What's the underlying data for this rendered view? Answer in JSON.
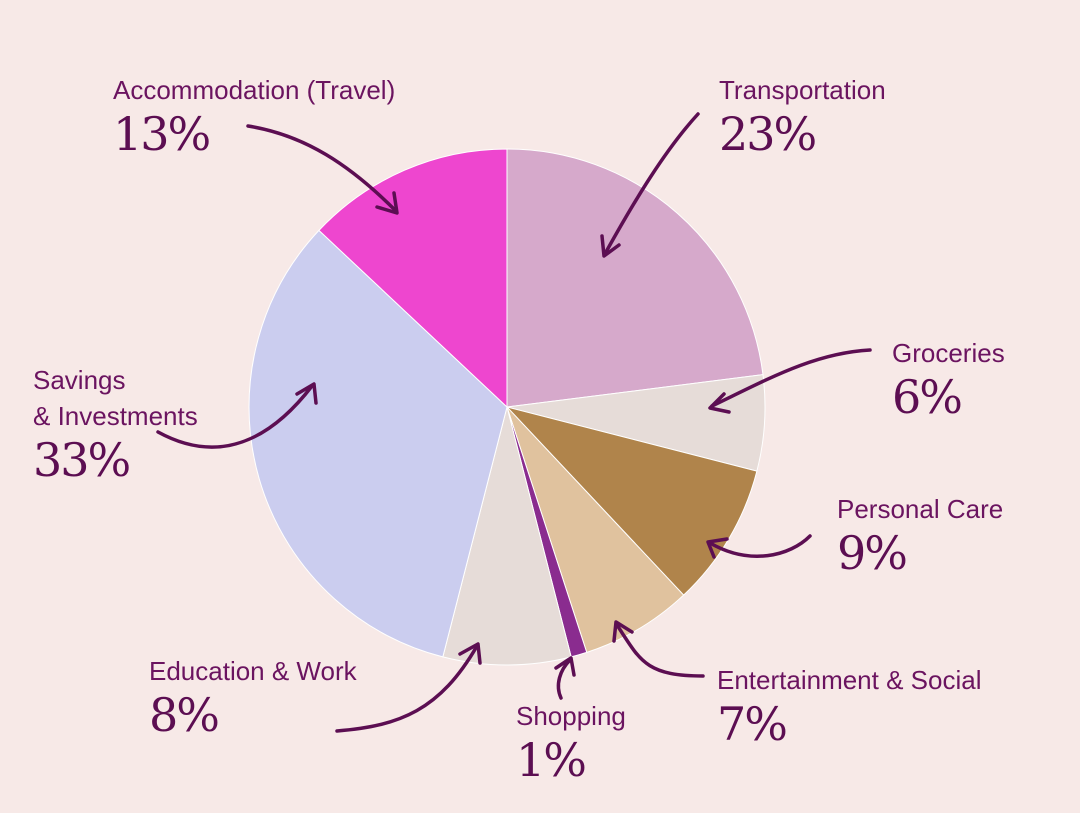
{
  "chart_data": {
    "type": "pie",
    "start_angle_deg": 0,
    "direction": "clockwise",
    "colors": {
      "background": "#f7e9e7",
      "slice_border": "#ffffff",
      "arrow": "#5c0e52",
      "text": "#5c0e52"
    },
    "slices": [
      {
        "label": "Transportation",
        "line2": "",
        "value": 23,
        "value_label": "23%",
        "color": "#d6a9cb"
      },
      {
        "label": "Groceries",
        "line2": "",
        "value": 6,
        "value_label": "6%",
        "color": "#e6dcd8"
      },
      {
        "label": "Personal Care",
        "line2": "",
        "value": 9,
        "value_label": "9%",
        "color": "#b0844b"
      },
      {
        "label": "Entertainment & Social",
        "line2": "",
        "value": 7,
        "value_label": "7%",
        "color": "#e0c29e"
      },
      {
        "label": "Shopping",
        "line2": "",
        "value": 1,
        "value_label": "1%",
        "color": "#8a2c8f"
      },
      {
        "label": "Education & Work",
        "line2": "",
        "value": 8,
        "value_label": "8%",
        "color": "#e6dcd8"
      },
      {
        "label": "Savings",
        "line2": "& Investments",
        "value": 33,
        "value_label": "33%",
        "color": "#cbcdef"
      },
      {
        "label": "Accommodation (Travel)",
        "line2": "",
        "value": 13,
        "value_label": "13%",
        "color": "#ee46cf"
      }
    ]
  }
}
